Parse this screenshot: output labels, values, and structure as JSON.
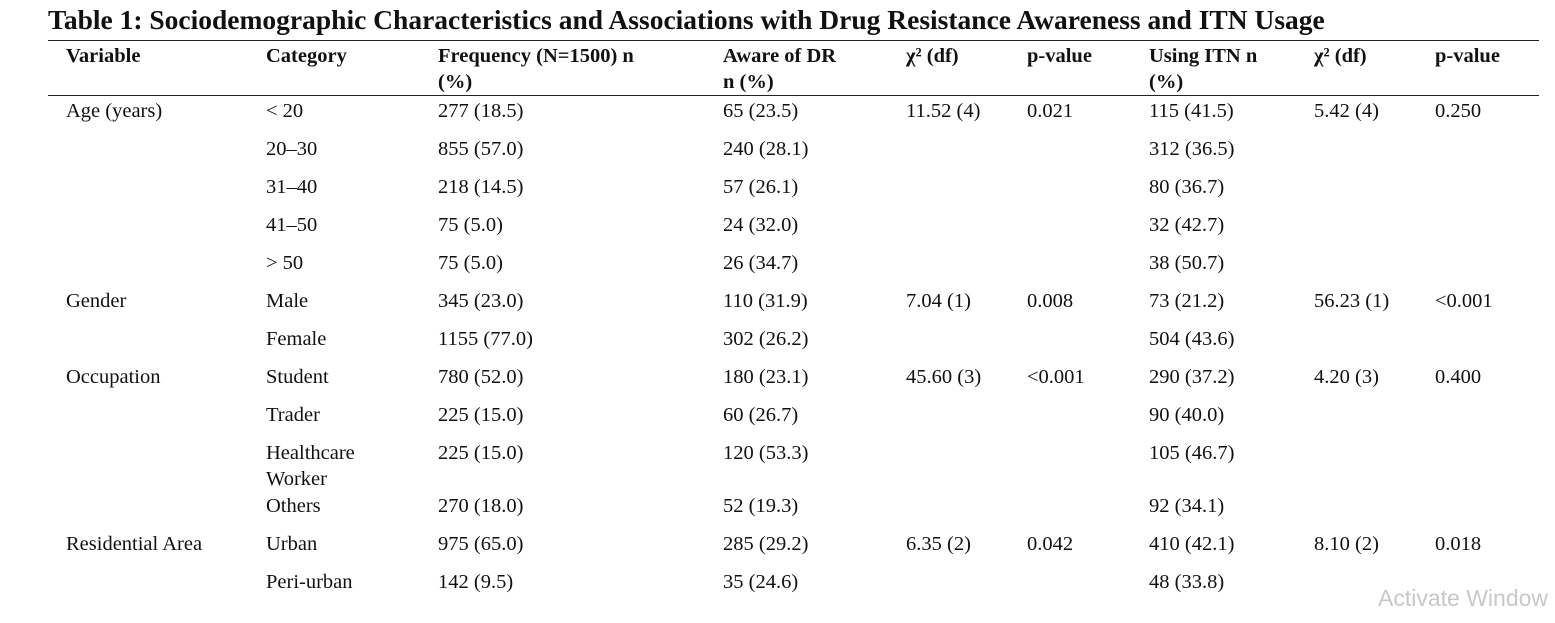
{
  "title": "Table 1: Sociodemographic Characteristics and Associations with Drug Resistance Awareness and ITN Usage",
  "headers": {
    "variable": "Variable",
    "category": "Category",
    "frequency_line1": "Frequency (N=1500) n",
    "frequency_line2": "(%)",
    "aware_line1": "Aware of DR",
    "aware_line2": "n (%)",
    "chi_dr": "χ² (df)",
    "p_dr": "p-value",
    "itn_line1": "Using ITN n",
    "itn_line2": "(%)",
    "chi_itn": "χ² (df)",
    "p_itn": "p-value"
  },
  "rows": [
    {
      "variable": "Age (years)",
      "category": "< 20",
      "frequency": "277 (18.5)",
      "aware": "65 (23.5)",
      "chi_dr": "11.52 (4)",
      "p_dr": "0.021",
      "itn": "115 (41.5)",
      "chi_itn": "5.42 (4)",
      "p_itn": "0.250"
    },
    {
      "variable": "",
      "category": "20–30",
      "frequency": "855 (57.0)",
      "aware": "240 (28.1)",
      "chi_dr": "",
      "p_dr": "",
      "itn": "312 (36.5)",
      "chi_itn": "",
      "p_itn": ""
    },
    {
      "variable": "",
      "category": "31–40",
      "frequency": "218 (14.5)",
      "aware": "57 (26.1)",
      "chi_dr": "",
      "p_dr": "",
      "itn": "80 (36.7)",
      "chi_itn": "",
      "p_itn": ""
    },
    {
      "variable": "",
      "category": "41–50",
      "frequency": "75 (5.0)",
      "aware": "24 (32.0)",
      "chi_dr": "",
      "p_dr": "",
      "itn": "32 (42.7)",
      "chi_itn": "",
      "p_itn": ""
    },
    {
      "variable": "",
      "category": "> 50",
      "frequency": "75 (5.0)",
      "aware": "26 (34.7)",
      "chi_dr": "",
      "p_dr": "",
      "itn": "38 (50.7)",
      "chi_itn": "",
      "p_itn": ""
    },
    {
      "variable": "Gender",
      "category": "Male",
      "frequency": "345 (23.0)",
      "aware": "110 (31.9)",
      "chi_dr": "7.04 (1)",
      "p_dr": "0.008",
      "itn": "73 (21.2)",
      "chi_itn": "56.23 (1)",
      "p_itn": "<0.001"
    },
    {
      "variable": "",
      "category": "Female",
      "frequency": "1155 (77.0)",
      "aware": "302 (26.2)",
      "chi_dr": "",
      "p_dr": "",
      "itn": "504 (43.6)",
      "chi_itn": "",
      "p_itn": ""
    },
    {
      "variable": "Occupation",
      "category": "Student",
      "frequency": "780 (52.0)",
      "aware": "180 (23.1)",
      "chi_dr": "45.60 (3)",
      "p_dr": "<0.001",
      "itn": "290 (37.2)",
      "chi_itn": "4.20 (3)",
      "p_itn": "0.400"
    },
    {
      "variable": "",
      "category": "Trader",
      "frequency": "225 (15.0)",
      "aware": "60 (26.7)",
      "chi_dr": "",
      "p_dr": "",
      "itn": "90 (40.0)",
      "chi_itn": "",
      "p_itn": ""
    },
    {
      "variable": "",
      "category": "Healthcare Worker",
      "frequency": "225 (15.0)",
      "aware": "120 (53.3)",
      "chi_dr": "",
      "p_dr": "",
      "itn": "105 (46.7)",
      "chi_itn": "",
      "p_itn": ""
    },
    {
      "variable": "",
      "category": "Others",
      "frequency": "270 (18.0)",
      "aware": "52 (19.3)",
      "chi_dr": "",
      "p_dr": "",
      "itn": "92 (34.1)",
      "chi_itn": "",
      "p_itn": ""
    },
    {
      "variable": "Residential Area",
      "category": "Urban",
      "frequency": "975 (65.0)",
      "aware": "285 (29.2)",
      "chi_dr": "6.35 (2)",
      "p_dr": "0.042",
      "itn": "410 (42.1)",
      "chi_itn": "8.10 (2)",
      "p_itn": "0.018"
    },
    {
      "variable": "",
      "category": "Peri-urban",
      "frequency": "142 (9.5)",
      "aware": "35 (24.6)",
      "chi_dr": "",
      "p_dr": "",
      "itn": "48 (33.8)",
      "chi_itn": "",
      "p_itn": ""
    }
  ],
  "watermark": "Activate Window"
}
